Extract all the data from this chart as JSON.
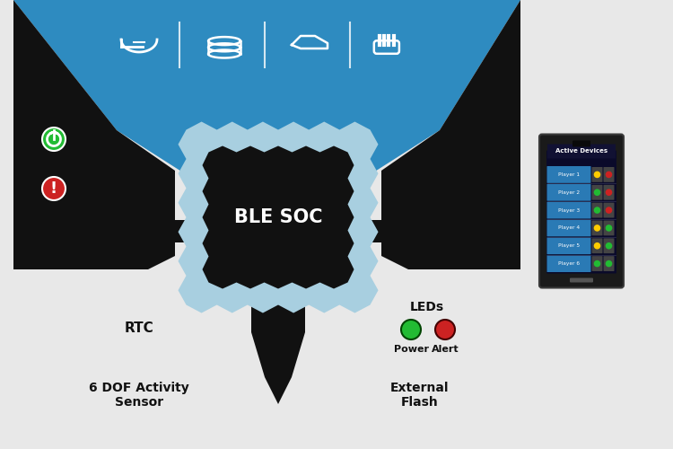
{
  "bg_color": "#e8e8e8",
  "blue_top_color": "#2e8bc0",
  "light_blue_color": "#a8cfe0",
  "black_shape_color": "#111111",
  "ble_soc_text": "BLE SOC",
  "power_label": "Power",
  "alert_label": "Alert",
  "rtc_label": "RTC",
  "dof_label": "6 DOF Activity\nSensor",
  "leds_label": "LEDs",
  "ext_flash_label": "External\nFlash",
  "phone_title": "Active Devices",
  "players": [
    "Player 1",
    "Player 2",
    "Player 3",
    "Player 4",
    "Player 5",
    "Player 6"
  ],
  "player_power_colors": [
    "#ffcc00",
    "#22bb33",
    "#22bb33",
    "#ffcc00",
    "#ffcc00",
    "#22bb33"
  ],
  "player_alert_colors": [
    "#cc2222",
    "#cc2222",
    "#cc2222",
    "#22bb33",
    "#22bb33",
    "#22bb33"
  ],
  "green_color": "#22bb33",
  "red_color": "#cc2222",
  "yellow_color": "#ffcc00",
  "fig_w": 7.5,
  "fig_h": 5.0,
  "dpi": 100
}
